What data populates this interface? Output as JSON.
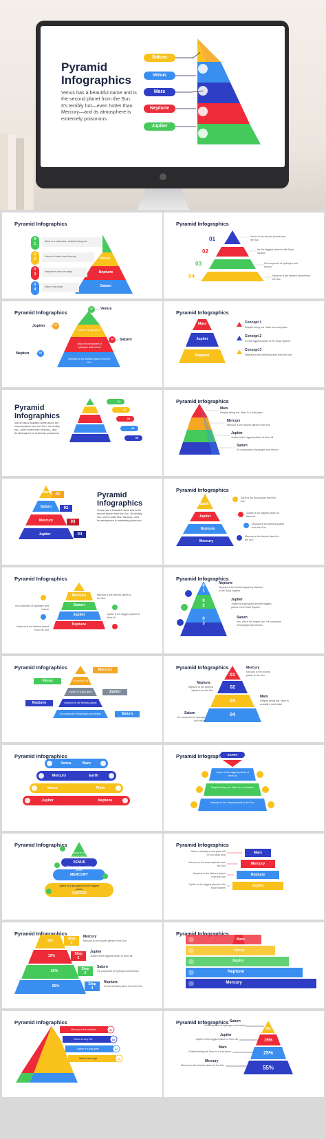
{
  "colors": {
    "yellow": "#f9c11c",
    "blue": "#3a8ef0",
    "indigo": "#2e3ec5",
    "red": "#ee2b38",
    "green": "#46c95b",
    "orange": "#f5a623",
    "navy": "#1c2440"
  },
  "hero": {
    "title": "Pyramid Infographics",
    "body": "Venus has a beautiful name and is the second planet from the Sun. It's terribly hot—even hotter than Mercury—and its atmosphere is extremely poisonous",
    "labels": [
      "Saturn",
      "Venus",
      "Mars",
      "Neptune",
      "Jupiter"
    ]
  },
  "slide_title": "Pyramid Infographics",
  "s1": {
    "nums": [
      "0\n1",
      "0\n2",
      "0\n3",
      "0\n4"
    ],
    "notes": [
      "Mars is a cold place, despite being red",
      "Venus is hotter than Mercury",
      "Neptune is very far away",
      "Saturn has rings"
    ],
    "levels": [
      "Venus",
      "Neptune",
      "Saturn"
    ]
  },
  "s2": {
    "nums": [
      "01",
      "02",
      "03",
      "04"
    ],
    "notes": [
      "Venus is the second planet from the Sun",
      "It's the biggest planet in the Solar System",
      "It's composed of hydrogen and helium",
      "Neptune is the farthest planet from the Sun"
    ]
  },
  "s3": {
    "names": [
      "Venus",
      "Jupiter",
      "Saturn",
      "Neptun"
    ],
    "nums": [
      "01",
      "02",
      "03",
      "04"
    ],
    "notes": [
      "Jupiter is a gas giant",
      "Saturn is composed of hydrogen and helium",
      "Neptune is the farthest planet from the Sun"
    ]
  },
  "s4": {
    "levels": [
      "Mars",
      "Jupiter",
      "Neptune"
    ],
    "concepts": [
      {
        "title": "Concept 1",
        "text": "Despite being red, Mars is a cold place"
      },
      {
        "title": "Concept 2",
        "text": "It's the biggest planet in the Solar System"
      },
      {
        "title": "Concept 3",
        "text": "Neptune is the farthest planet from the Sun"
      }
    ]
  },
  "s5": {
    "body": "Venus has a beautiful name and is the second planet from the Sun. It's terribly hot—even hotter than Mercury—and its atmosphere is extremely poisonous",
    "nums": [
      "01",
      "02",
      "03",
      "04",
      "05"
    ]
  },
  "s6": {
    "items": [
      {
        "title": "Mars",
        "text": "Despite being red, Mars is a cold place"
      },
      {
        "title": "Mercury",
        "text": "Mercury is the closest planet to the Sun"
      },
      {
        "title": "Jupiter",
        "text": "Jupiter is the biggest planet of them all"
      },
      {
        "title": "Saturn",
        "text": "It's composed of hydrogen and helium"
      }
    ]
  },
  "s7": {
    "levels": [
      "Mars",
      "Saturn",
      "Mercury",
      "Jupiter"
    ],
    "nums": [
      "01",
      "02",
      "03",
      "04"
    ],
    "body": "Venus has a beautiful name and is the second planet from the Sun. It's terribly hot—even hotter than Mercury—and its atmosphere is extremely poisonous"
  },
  "s8": {
    "levels": [
      "Earth",
      "Jupiter",
      "Neptune",
      "Mercury"
    ],
    "notes": [
      "Earth is the third planet from the Sun",
      "Jupiter is the biggest planet of them all",
      "Neptune is the farthest planet from the Sun",
      "Mercury is the closest planet to the Sun"
    ]
  },
  "s9": {
    "levels": [
      "Mercury",
      "Saturn",
      "Jupiter",
      "Neptune"
    ],
    "notes": [
      "Mercury is the closest planet to the Sun",
      "It's composed of hydrogen and helium",
      "Jupiter is the biggest planet of them all",
      "Neptune is the farthest planet from the Sun"
    ]
  },
  "s10": {
    "nums": [
      "0\n1",
      "0\n2",
      "0\n3"
    ],
    "items": [
      {
        "title": "Neptune",
        "text": "Neptune is the fourth-largest by diameter in the Solar System"
      },
      {
        "title": "Jupiter",
        "text": "Jupiter is a gas giant and the biggest planet in the Solar System"
      },
      {
        "title": "Saturn",
        "text": "Yes, this is the ringed one. It's composed of hydrogen and helium"
      }
    ]
  },
  "s11": {
    "names": [
      "Mercury",
      "Venus",
      "Jupiter",
      "Neptune",
      "Saturn"
    ],
    "notes": [
      "It's terribly hot",
      "Jupiter is a gas giant",
      "Neptune is the farthest planet",
      "It's composed of hydrogen and helium"
    ]
  },
  "s12": {
    "nums": [
      "01",
      "02",
      "03",
      "04"
    ],
    "items": [
      {
        "title": "Mercury",
        "text": "Mercury is the closest planet to the Sun"
      },
      {
        "title": "Neptune",
        "text": "Neptune is the farthest planet from the Sun"
      },
      {
        "title": "Mars",
        "text": "Despite being red, Mars is actually a cold place"
      },
      {
        "title": "Saturn",
        "text": "It's composed of hydrogen and helium"
      }
    ]
  },
  "s13": {
    "levels": [
      "Venus",
      "Mars",
      "Mercury",
      "Earth",
      "Venus",
      "Pluto",
      "Jupiter",
      "Neptune"
    ]
  },
  "s14": {
    "start": "START",
    "notes": [
      "Jupiter is the biggest planet of them all",
      "Despite being red, Mars is a cold place",
      "Mercury is the closest planet to the Sun"
    ]
  },
  "s15": {
    "levels": [
      "VENUS",
      "MERCURY",
      "JUPITER"
    ],
    "notes": [
      "Venus is the second planet",
      "Mercury is the smallest planet",
      "Jupiter is a gas giant and the biggest planet"
    ]
  },
  "s16": {
    "levels": [
      "Mars",
      "Mercury",
      "Neptune",
      "Jupiter"
    ],
    "notes": [
      "Mars is actually a cold place full of iron oxide dust",
      "Mercury is the closest planet from the Sun",
      "Neptune is the farthest planet from the Sun",
      "Jupiter is the biggest planet in the Solar System"
    ]
  },
  "s17": {
    "pcts": [
      "5%",
      "15%",
      "25%",
      "55%"
    ],
    "steps": [
      "Step\n1",
      "Step\n2",
      "Step\n3",
      "Step\n4"
    ],
    "items": [
      {
        "title": "Mercury",
        "text": "Mercury is the closest planet to the Sun"
      },
      {
        "title": "Jupiter",
        "text": "Jupiter is the biggest planet of them all"
      },
      {
        "title": "Saturn",
        "text": "It's composed of hydrogen and helium"
      },
      {
        "title": "Neptune",
        "text": "It's the farthest planet from the Sun"
      }
    ]
  },
  "s18": {
    "levels": [
      "Mars",
      "Venus",
      "Jupiter",
      "Neptune",
      "Mercury"
    ]
  },
  "s19": {
    "nums": [
      "01",
      "02",
      "03",
      "04"
    ],
    "notes": [
      "Mercury is the smallest",
      "Venus is very hot",
      "Jupiter is a gas giant",
      "Saturn has rings"
    ]
  },
  "s20": {
    "pcts": [
      "5%",
      "15%",
      "25%",
      "55%"
    ],
    "items": [
      {
        "title": "Saturn",
        "text": "It's composed of hydrogen and helium"
      },
      {
        "title": "Jupiter",
        "text": "Jupiter is the biggest planet of them all"
      },
      {
        "title": "Mars",
        "text": "Despite being red, Mars is a cold place"
      },
      {
        "title": "Mercury",
        "text": "Mercury is the closest planet to the Sun"
      }
    ]
  }
}
